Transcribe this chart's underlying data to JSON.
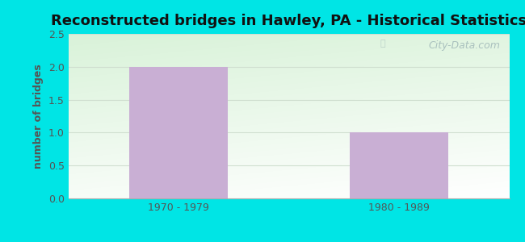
{
  "title": "Reconstructed bridges in Hawley, PA - Historical Statistics",
  "categories": [
    "1970 - 1979",
    "1980 - 1989"
  ],
  "values": [
    2,
    1
  ],
  "bar_color": "#c9afd4",
  "ylabel": "number of bridges",
  "ylim": [
    0,
    2.5
  ],
  "yticks": [
    0,
    0.5,
    1,
    1.5,
    2,
    2.5
  ],
  "title_fontsize": 13,
  "label_fontsize": 9,
  "tick_fontsize": 9,
  "bar_width": 0.45,
  "background_outer": "#00e5e5",
  "grid_color": "#d0dfd0",
  "watermark_text": "City-Data.com",
  "ylabel_color": "#555555",
  "title_color": "#111111",
  "tick_color": "#555555",
  "plot_bg_color_top": "#e8f5e2",
  "plot_bg_color_bottom": "#f8fff5"
}
